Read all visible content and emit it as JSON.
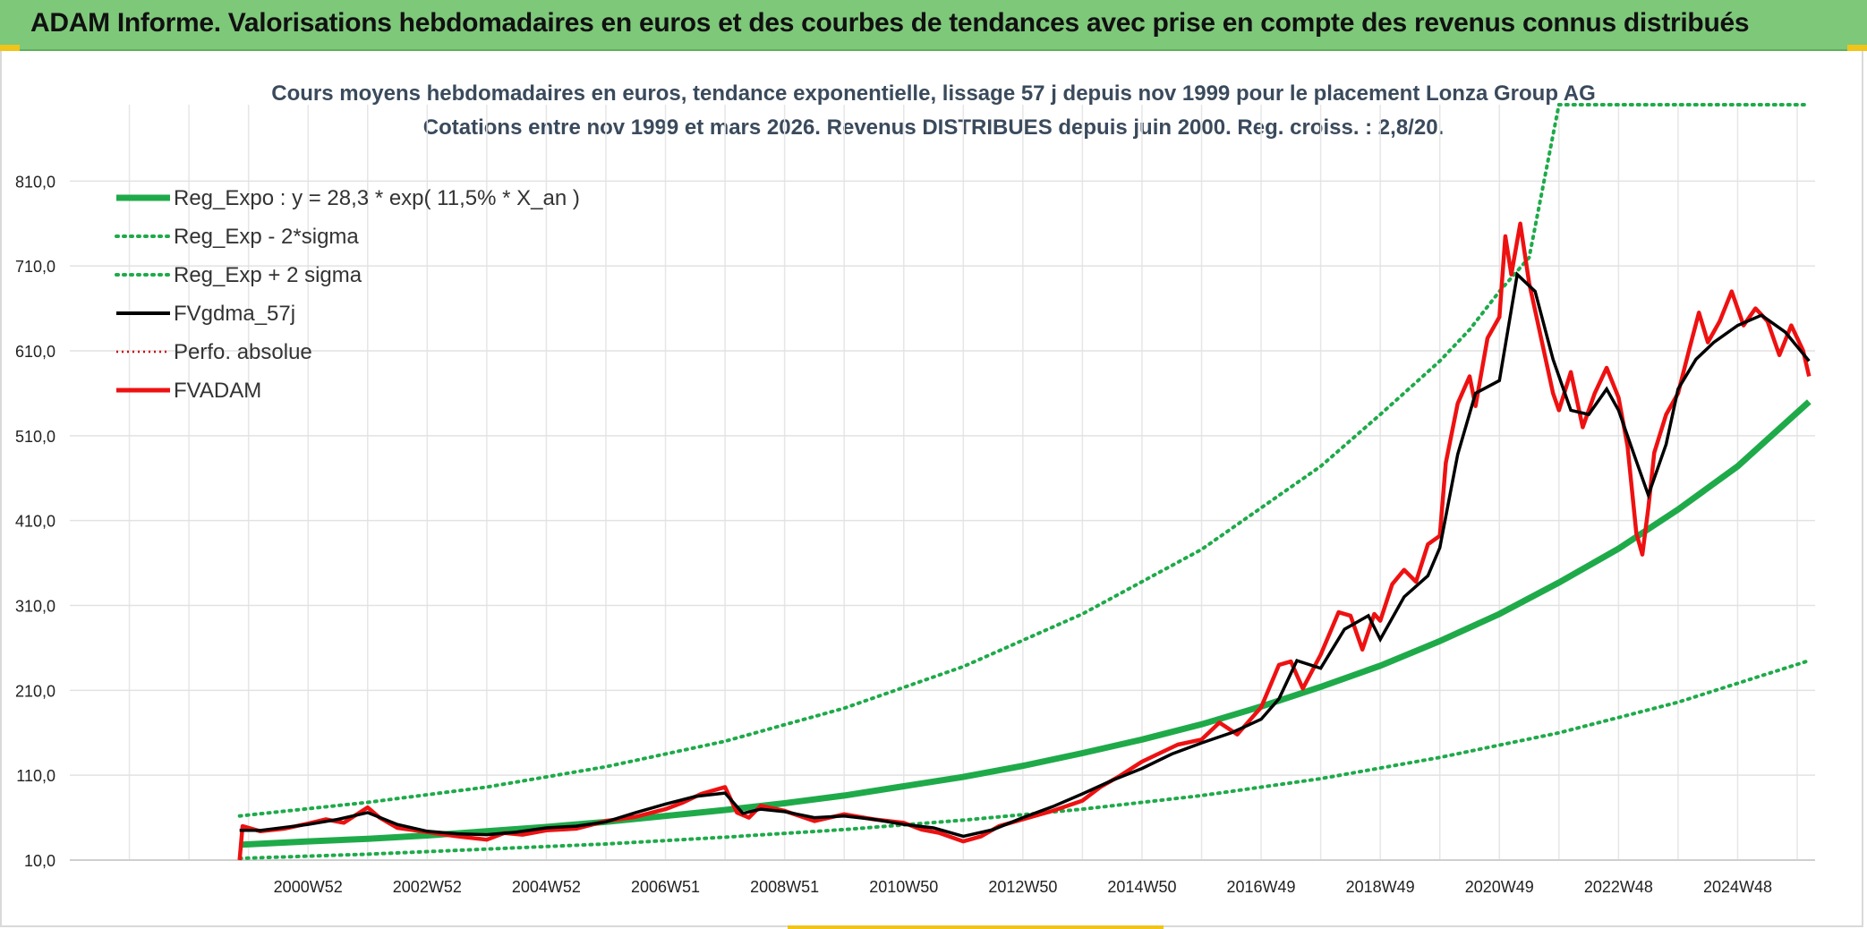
{
  "header": {
    "title": "ADAM Informe. Valorisations hebdomadaires en euros et des courbes de tendances avec prise en compte des revenus connus distribués"
  },
  "chart_data": {
    "type": "line",
    "title_line1": "Cours moyens hebdomadaires en euros, tendance exponentielle, lissage 57 j depuis nov 1999 pour le placement Lonza Group AG",
    "title_line2": "Cotations entre nov 1999 et mars 2026. Revenus DISTRIBUES depuis juin 2000. Reg. croiss. : 2,8/20.",
    "ylim": [
      10,
      900
    ],
    "y_ticks": [
      "10,0",
      "110,0",
      "210,0",
      "310,0",
      "410,0",
      "510,0",
      "610,0",
      "710,0",
      "810,0"
    ],
    "y_tick_values": [
      10,
      110,
      210,
      310,
      410,
      510,
      610,
      710,
      810
    ],
    "xlim": [
      1997.0,
      2026.3
    ],
    "x_ticks": [
      "2000W52",
      "2002W52",
      "2004W52",
      "2006W51",
      "2008W51",
      "2010W50",
      "2012W50",
      "2014W50",
      "2016W49",
      "2018W49",
      "2020W49",
      "2022W48",
      "2024W48"
    ],
    "x_tick_values": [
      2001,
      2003,
      2005,
      2007,
      2009,
      2011,
      2013,
      2015,
      2017,
      2019,
      2021,
      2023,
      2025
    ],
    "legend": [
      {
        "label": "Reg_Expo : y = 28,3 * exp( 11,5% *  X_an )",
        "color": "#1faa4a",
        "style": "solid-thick"
      },
      {
        "label": "Reg_Exp - 2*sigma",
        "color": "#1faa4a",
        "style": "dotted"
      },
      {
        "label": "Reg_Exp + 2 sigma",
        "color": "#1faa4a",
        "style": "dotted"
      },
      {
        "label": "FVgdma_57j",
        "color": "#000000",
        "style": "solid"
      },
      {
        "label": "Perfo. absolue",
        "color": "#cc0000",
        "style": "dotted"
      },
      {
        "label": "FVADAM",
        "color": "#ee1111",
        "style": "solid-thick"
      }
    ],
    "series": [
      {
        "name": "Reg_Expo",
        "color": "#1faa4a",
        "x": [
          1999.85,
          2001,
          2002,
          2003,
          2004,
          2005,
          2006,
          2007,
          2008,
          2009,
          2010,
          2011,
          2012,
          2013,
          2014,
          2015,
          2016,
          2017,
          2018,
          2019,
          2020,
          2021,
          2022,
          2023,
          2024,
          2025,
          2026.2
        ],
        "values": [
          28,
          32,
          35,
          39,
          44,
          49,
          55,
          62,
          69,
          77,
          86,
          97,
          108,
          121,
          136,
          152,
          170,
          191,
          214,
          239,
          268,
          300,
          337,
          377,
          423,
          474,
          550
        ]
      },
      {
        "name": "Reg_Exp - 2*sigma",
        "color": "#1faa4a",
        "x": [
          1999.85,
          2002,
          2004,
          2006,
          2008,
          2010,
          2012,
          2014,
          2016,
          2018,
          2020,
          2022,
          2024,
          2026.2
        ],
        "values": [
          12,
          17,
          23,
          29,
          37,
          46,
          57,
          70,
          86,
          106,
          131,
          160,
          196,
          245
        ]
      },
      {
        "name": "Reg_Exp + 2 sigma",
        "color": "#1faa4a",
        "x": [
          1999.85,
          2002,
          2004,
          2006,
          2008,
          2010,
          2012,
          2014,
          2016,
          2018,
          2019,
          2020,
          2020.5,
          2021,
          2021.5,
          2022,
          2026.2
        ],
        "values": [
          62,
          78,
          96,
          120,
          150,
          189,
          238,
          300,
          376,
          474,
          535,
          598,
          635,
          680,
          720,
          900,
          900
        ]
      },
      {
        "name": "FVgdma_57j",
        "color": "#000000",
        "x": [
          1999.85,
          2000.2,
          2001,
          2001.5,
          2002,
          2002.5,
          2003,
          2003.5,
          2004,
          2004.5,
          2005,
          2005.5,
          2006,
          2006.5,
          2007,
          2007.5,
          2008,
          2008.3,
          2008.6,
          2009,
          2009.5,
          2010,
          2010.5,
          2011,
          2011.5,
          2012,
          2012.5,
          2013,
          2013.5,
          2014,
          2014.5,
          2015,
          2015.5,
          2016,
          2016.5,
          2017,
          2017.3,
          2017.6,
          2018,
          2018.4,
          2018.8,
          2019,
          2019.4,
          2019.8,
          2020,
          2020.3,
          2020.6,
          2021,
          2021.3,
          2021.6,
          2021.9,
          2022.2,
          2022.5,
          2022.8,
          2023,
          2023.3,
          2023.5,
          2023.8,
          2024,
          2024.3,
          2024.6,
          2025,
          2025.4,
          2025.8,
          2026.2
        ],
        "values": [
          45,
          45,
          52,
          58,
          66,
          52,
          44,
          41,
          40,
          43,
          48,
          50,
          55,
          66,
          76,
          85,
          89,
          65,
          70,
          67,
          60,
          62,
          58,
          52,
          48,
          38,
          46,
          60,
          73,
          88,
          104,
          118,
          135,
          148,
          160,
          176,
          200,
          245,
          236,
          282,
          298,
          270,
          320,
          345,
          378,
          488,
          560,
          575,
          700,
          680,
          600,
          540,
          535,
          565,
          540,
          480,
          440,
          500,
          565,
          600,
          620,
          640,
          652,
          632,
          598
        ]
      },
      {
        "name": "FVADAM",
        "color": "#ee1111",
        "x": [
          1999.85,
          1999.9,
          2000.2,
          2000.6,
          2001,
          2001.3,
          2001.6,
          2002,
          2002.2,
          2002.5,
          2003,
          2003.5,
          2004,
          2004.3,
          2004.6,
          2005,
          2005.5,
          2006,
          2006.5,
          2007,
          2007.3,
          2007.6,
          2008,
          2008.2,
          2008.4,
          2008.6,
          2009,
          2009.5,
          2010,
          2010.5,
          2011,
          2011.3,
          2011.6,
          2012,
          2012.3,
          2012.6,
          2013,
          2013.5,
          2014,
          2014.3,
          2014.6,
          2015,
          2015.3,
          2015.6,
          2016,
          2016.3,
          2016.6,
          2017,
          2017.3,
          2017.5,
          2017.7,
          2018,
          2018.3,
          2018.5,
          2018.7,
          2018.9,
          2019,
          2019.2,
          2019.4,
          2019.6,
          2019.8,
          2020,
          2020.1,
          2020.3,
          2020.5,
          2020.6,
          2020.8,
          2021,
          2021.1,
          2021.2,
          2021.35,
          2021.5,
          2021.7,
          2021.9,
          2022,
          2022.2,
          2022.4,
          2022.6,
          2022.8,
          2023,
          2023.15,
          2023.3,
          2023.4,
          2023.5,
          2023.6,
          2023.8,
          2024,
          2024.2,
          2024.35,
          2024.5,
          2024.7,
          2024.9,
          2025.1,
          2025.3,
          2025.5,
          2025.7,
          2025.9,
          2026.1,
          2026.2
        ],
        "values": [
          10,
          50,
          44,
          47,
          53,
          58,
          54,
          72,
          60,
          48,
          43,
          38,
          34,
          42,
          40,
          45,
          47,
          56,
          61,
          70,
          78,
          88,
          96,
          66,
          60,
          74,
          68,
          56,
          64,
          58,
          54,
          46,
          42,
          32,
          38,
          50,
          58,
          68,
          80,
          96,
          108,
          126,
          136,
          146,
          152,
          172,
          158,
          190,
          240,
          244,
          212,
          252,
          302,
          298,
          258,
          300,
          292,
          335,
          352,
          338,
          382,
          392,
          478,
          548,
          580,
          545,
          625,
          650,
          745,
          700,
          760,
          690,
          625,
          560,
          540,
          585,
          520,
          560,
          590,
          555,
          498,
          395,
          370,
          425,
          490,
          535,
          560,
          615,
          655,
          620,
          645,
          680,
          640,
          660,
          645,
          605,
          640,
          610,
          580
        ]
      }
    ]
  }
}
